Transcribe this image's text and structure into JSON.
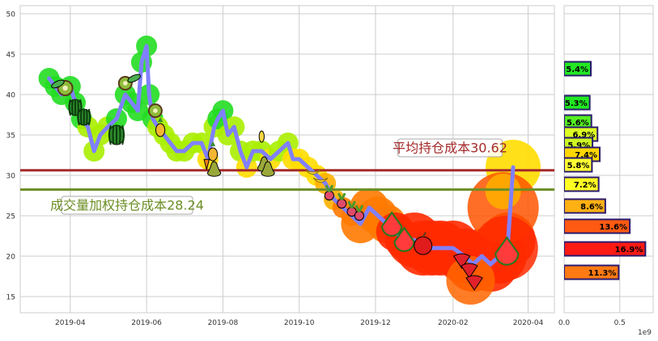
{
  "colors": {
    "price_line": "#8080ff",
    "avg_cost_line": "#a52a2a",
    "vw_cost_line": "#6b8e23",
    "grid": "#cccccc",
    "axis_text": "#333333",
    "bar_edge": "#2a1a6e"
  },
  "chart_data": [
    {
      "type": "line",
      "title": "",
      "xlabel": "",
      "ylabel": "",
      "ylim": [
        13,
        51
      ],
      "y_ticks": [
        "15",
        "20",
        "25",
        "30",
        "35",
        "40",
        "45",
        "50"
      ],
      "x_ticks": [
        "2019-04",
        "2019-06",
        "2019-08",
        "2019-10",
        "2019-12",
        "2020-02",
        "2020-04"
      ],
      "x_tick_dates": [
        "2019-04-01",
        "2019-06-01",
        "2019-08-01",
        "2019-10-01",
        "2019-12-01",
        "2020-02-01",
        "2020-04-01"
      ],
      "grid": true,
      "icons": [
        "kiwi-icon",
        "pea-pod-icon",
        "watermelon-icon",
        "pineapple-icon",
        "carrot-icon",
        "pear-icon",
        "corn-icon",
        "banana-icon",
        "radish-icon",
        "watermelon-slice-icon",
        "apple-icon",
        "strawberry-icon"
      ],
      "series": [
        {
          "x": [
            "2019-03-15",
            "2019-03-20",
            "2019-03-25",
            "2019-04-01",
            "2019-04-05",
            "2019-04-10",
            "2019-04-15",
            "2019-04-20",
            "2019-04-25",
            "2019-05-01",
            "2019-05-08",
            "2019-05-15",
            "2019-05-20",
            "2019-05-25",
            "2019-05-28",
            "2019-06-01",
            "2019-06-03",
            "2019-06-06",
            "2019-06-10",
            "2019-06-15",
            "2019-06-20",
            "2019-06-25",
            "2019-07-01",
            "2019-07-08",
            "2019-07-15",
            "2019-07-20",
            "2019-07-25",
            "2019-07-28",
            "2019-08-01",
            "2019-08-05",
            "2019-08-10",
            "2019-08-15",
            "2019-08-20",
            "2019-08-25",
            "2019-09-01",
            "2019-09-08",
            "2019-09-15",
            "2019-09-22",
            "2019-09-26",
            "2019-10-01",
            "2019-10-08",
            "2019-10-15",
            "2019-10-22",
            "2019-10-29",
            "2019-11-05",
            "2019-11-12",
            "2019-11-19",
            "2019-11-26",
            "2019-12-03",
            "2019-12-10",
            "2019-12-17",
            "2019-12-24",
            "2020-01-01",
            "2020-01-08",
            "2020-01-15",
            "2020-01-22",
            "2020-02-01",
            "2020-02-10",
            "2020-02-17",
            "2020-02-24",
            "2020-03-02",
            "2020-03-09",
            "2020-03-16",
            "2020-03-20"
          ],
          "values": [
            42,
            41,
            40,
            41,
            39,
            37,
            36,
            33,
            35,
            36,
            37,
            40,
            39,
            38,
            44,
            46,
            40,
            37,
            36,
            35,
            34,
            33,
            33,
            34,
            34,
            32,
            36,
            37,
            38,
            35,
            36,
            33,
            31,
            33,
            33,
            32,
            33,
            34,
            32,
            32,
            31,
            30,
            29,
            27,
            26,
            25,
            24,
            26,
            25,
            24,
            23,
            22,
            22,
            21,
            21,
            21,
            21,
            20,
            19,
            20,
            19,
            20,
            22,
            31
          ]
        },
        {
          "name": "平均持仓成本30.62",
          "value": 30.62
        },
        {
          "name": "成交量加权持仓成本28.24",
          "value": 28.24
        }
      ]
    },
    {
      "type": "bar",
      "orientation": "horizontal",
      "xlim": [
        0,
        800000000
      ],
      "x_ticks": [
        "0.0",
        "0.5"
      ],
      "x_scale_label": "1e9",
      "bars": [
        {
          "price": 43.2,
          "value": 240000000,
          "label": "5.4%",
          "color": "#22e722"
        },
        {
          "price": 39.0,
          "value": 230000000,
          "label": "5.3%",
          "color": "#22e722"
        },
        {
          "price": 36.6,
          "value": 245000000,
          "label": "5.6%",
          "color": "#55ee22"
        },
        {
          "price": 35.1,
          "value": 300000000,
          "label": "6.9%",
          "color": "#ddff22"
        },
        {
          "price": 33.8,
          "value": 255000000,
          "label": "5.9%",
          "color": "#ccf722"
        },
        {
          "price": 32.6,
          "value": 320000000,
          "label": "7.4%",
          "color": "#ffd700"
        },
        {
          "price": 31.3,
          "value": 250000000,
          "label": "5.8%",
          "color": "#ffff33"
        },
        {
          "price": 28.9,
          "value": 310000000,
          "label": "7.2%",
          "color": "#ffff22"
        },
        {
          "price": 26.2,
          "value": 370000000,
          "label": "8.6%",
          "color": "#ffb012"
        },
        {
          "price": 23.7,
          "value": 590000000,
          "label": "13.6%",
          "color": "#ff5a12"
        },
        {
          "price": 20.9,
          "value": 730000000,
          "label": "16.9%",
          "color": "#ff1a12"
        },
        {
          "price": 18.0,
          "value": 490000000,
          "label": "11.3%",
          "color": "#ff7a12"
        }
      ]
    }
  ]
}
